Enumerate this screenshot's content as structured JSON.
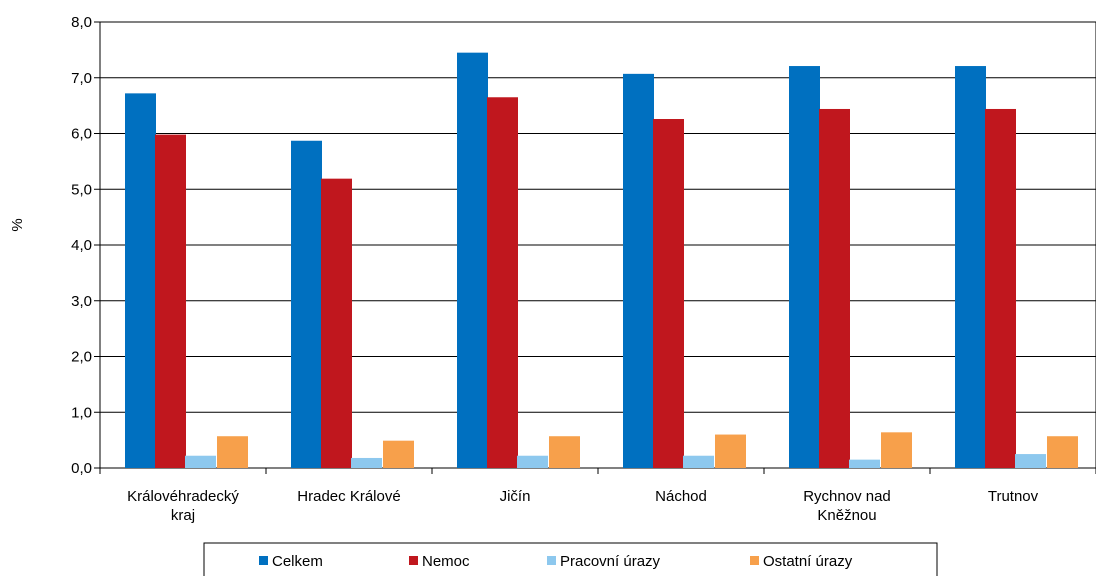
{
  "chart_data": {
    "type": "bar",
    "ylabel": "%",
    "ylim": [
      0,
      8
    ],
    "yticks": [
      "0,0",
      "1,0",
      "2,0",
      "3,0",
      "4,0",
      "5,0",
      "6,0",
      "7,0",
      "8,0"
    ],
    "categories": [
      [
        "Královéhradecký",
        "kraj"
      ],
      [
        "Hradec Králové"
      ],
      [
        "Jičín"
      ],
      [
        "Náchod"
      ],
      [
        "Rychnov nad",
        "Kněžnou"
      ],
      [
        "Trutnov"
      ]
    ],
    "series": [
      {
        "name": "Celkem",
        "color": "#0070C0",
        "values": [
          6.72,
          5.87,
          7.45,
          7.07,
          7.21,
          7.21
        ]
      },
      {
        "name": "Nemoc",
        "color": "#C0171E",
        "values": [
          5.98,
          5.19,
          6.65,
          6.26,
          6.44,
          6.44
        ]
      },
      {
        "name": "Pracovní úrazy",
        "color": "#8DC8EE",
        "values": [
          0.22,
          0.18,
          0.22,
          0.22,
          0.15,
          0.25
        ]
      },
      {
        "name": "Ostatní úrazy",
        "color": "#F7A04B",
        "values": [
          0.57,
          0.49,
          0.57,
          0.6,
          0.64,
          0.57
        ]
      }
    ],
    "grid": true,
    "legend_position": "bottom"
  }
}
